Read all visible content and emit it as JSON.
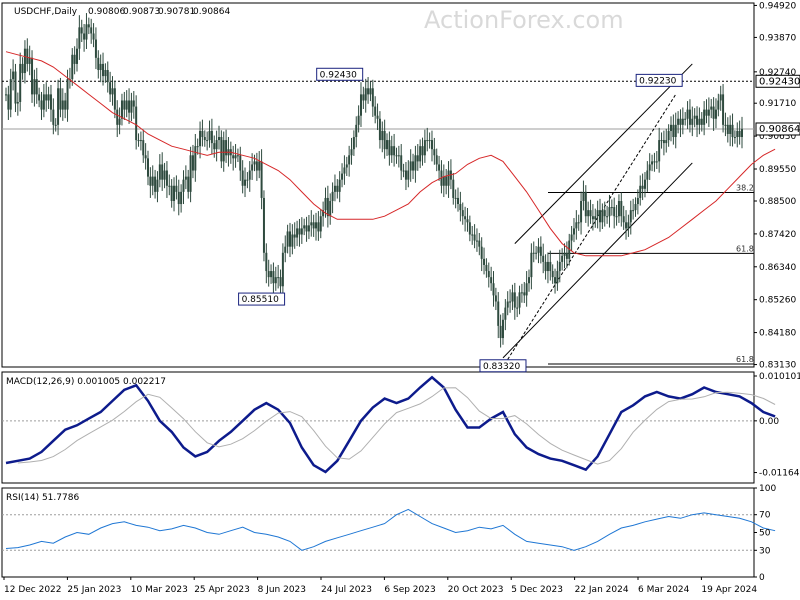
{
  "chart_data": {
    "type": "candlestick",
    "symbol": "USDCHF,Daily",
    "ohlc": [
      "0.90806",
      "0.90873",
      "0.90781",
      "0.90864"
    ],
    "watermark": "ActionForex.com",
    "x_labels": [
      "12 Dec 2022",
      "25 Jan 2023",
      "10 Mar 2023",
      "25 Apr 2023",
      "8 Jun 2023",
      "24 Jul 2023",
      "6 Sep 2023",
      "20 Oct 2023",
      "5 Dec 2023",
      "22 Jan 2024",
      "6 Mar 2024",
      "19 Apr 2024"
    ],
    "price": {
      "ylim": [
        0.8305,
        0.95
      ],
      "ticks": [
        "0.94920",
        "0.93870",
        "0.92740",
        "0.91710",
        "0.90630",
        "0.89550",
        "0.88500",
        "0.87420",
        "0.86340",
        "0.85260",
        "0.84180",
        "0.83130"
      ],
      "current": "0.90864",
      "resistance": "0.92430",
      "close": [
        0.92,
        0.915,
        0.925,
        0.9275,
        0.917,
        0.9175,
        0.93,
        0.927,
        0.935,
        0.93,
        0.932,
        0.92,
        0.925,
        0.92,
        0.918,
        0.915,
        0.92,
        0.918,
        0.92,
        0.915,
        0.91,
        0.91,
        0.922,
        0.915,
        0.918,
        0.915,
        0.925,
        0.925,
        0.933,
        0.93,
        0.935,
        0.942,
        0.94,
        0.938,
        0.943,
        0.942,
        0.94,
        0.938,
        0.932,
        0.928,
        0.93,
        0.926,
        0.928,
        0.924,
        0.92,
        0.922,
        0.915,
        0.91,
        0.912,
        0.918,
        0.915,
        0.918,
        0.914,
        0.918,
        0.916,
        0.905,
        0.905,
        0.905,
        0.9,
        0.899,
        0.893,
        0.89,
        0.893,
        0.888,
        0.892,
        0.897,
        0.892,
        0.895,
        0.89,
        0.89,
        0.885,
        0.89,
        0.888,
        0.884,
        0.888,
        0.892,
        0.893,
        0.888,
        0.9,
        0.895,
        0.903,
        0.903,
        0.908,
        0.906,
        0.905,
        0.905,
        0.908,
        0.904,
        0.902,
        0.905,
        0.906,
        0.898,
        0.905,
        0.9,
        0.902,
        0.9,
        0.899,
        0.9,
        0.9,
        0.895,
        0.89,
        0.892,
        0.892,
        0.895,
        0.897,
        0.898,
        0.895,
        0.898,
        0.886,
        0.868,
        0.862,
        0.86,
        0.862,
        0.858,
        0.86,
        0.86,
        0.857,
        0.868,
        0.87,
        0.875,
        0.87,
        0.874,
        0.873,
        0.876,
        0.874,
        0.876,
        0.877,
        0.875,
        0.877,
        0.878,
        0.876,
        0.878,
        0.875,
        0.88,
        0.882,
        0.886,
        0.88,
        0.885,
        0.888,
        0.89,
        0.888,
        0.892,
        0.894,
        0.896,
        0.897,
        0.9,
        0.902,
        0.906,
        0.91,
        0.913,
        0.92,
        0.918,
        0.922,
        0.92,
        0.922,
        0.916,
        0.913,
        0.912,
        0.905,
        0.908,
        0.902,
        0.905,
        0.9,
        0.903,
        0.9,
        0.9,
        0.9,
        0.895,
        0.895,
        0.892,
        0.895,
        0.898,
        0.895,
        0.9,
        0.898,
        0.903,
        0.9,
        0.905,
        0.905,
        0.905,
        0.902,
        0.9,
        0.897,
        0.895,
        0.89,
        0.893,
        0.89,
        0.895,
        0.892,
        0.886,
        0.886,
        0.884,
        0.882,
        0.88,
        0.879,
        0.878,
        0.874,
        0.874,
        0.872,
        0.872,
        0.87,
        0.866,
        0.864,
        0.862,
        0.86,
        0.858,
        0.854,
        0.852,
        0.844,
        0.84,
        0.846,
        0.85,
        0.852,
        0.852,
        0.855,
        0.85,
        0.85,
        0.855,
        0.855,
        0.854,
        0.858,
        0.86,
        0.868,
        0.868,
        0.868,
        0.87,
        0.867,
        0.865,
        0.862,
        0.865,
        0.862,
        0.86,
        0.858,
        0.862,
        0.865,
        0.867,
        0.868,
        0.866,
        0.872,
        0.874,
        0.876,
        0.878,
        0.878,
        0.885,
        0.888,
        0.88,
        0.882,
        0.88,
        0.879,
        0.88,
        0.882,
        0.878,
        0.882,
        0.88,
        0.88,
        0.883,
        0.883,
        0.88,
        0.88,
        0.885,
        0.88,
        0.878,
        0.876,
        0.878,
        0.882,
        0.882,
        0.884,
        0.886,
        0.89,
        0.889,
        0.892,
        0.895,
        0.897,
        0.898,
        0.898,
        0.898,
        0.905,
        0.905,
        0.904,
        0.905,
        0.908,
        0.91,
        0.906,
        0.91,
        0.912,
        0.91,
        0.912,
        0.912,
        0.915,
        0.91,
        0.912,
        0.913,
        0.91,
        0.912,
        0.91,
        0.915,
        0.913,
        0.915,
        0.916,
        0.912,
        0.915,
        0.918,
        0.92,
        0.91,
        0.91,
        0.907,
        0.91,
        0.906,
        0.906,
        0.908,
        0.906,
        0.9086
      ],
      "ma": [
        0.934,
        0.933,
        0.932,
        0.931,
        0.929,
        0.926,
        0.923,
        0.92,
        0.917,
        0.914,
        0.912,
        0.91,
        0.907,
        0.905,
        0.903,
        0.902,
        0.901,
        0.9,
        0.901,
        0.901,
        0.9,
        0.899,
        0.897,
        0.895,
        0.892,
        0.888,
        0.884,
        0.881,
        0.879,
        0.879,
        0.879,
        0.879,
        0.88,
        0.882,
        0.884,
        0.888,
        0.891,
        0.893,
        0.894,
        0.897,
        0.899,
        0.9,
        0.898,
        0.893,
        0.888,
        0.882,
        0.876,
        0.871,
        0.868,
        0.867,
        0.867,
        0.867,
        0.867,
        0.868,
        0.869,
        0.871,
        0.873,
        0.876,
        0.879,
        0.882,
        0.885,
        0.889,
        0.893,
        0.897,
        0.9,
        0.902
      ],
      "ma_x0": 0,
      "ma_step": 5,
      "annotations": [
        {
          "label": "0.92430",
          "i": 141,
          "v": 0.9243
        },
        {
          "label": "0.85510",
          "i": 108,
          "v": 0.8551
        },
        {
          "label": "0.83320",
          "i": 210,
          "v": 0.8332
        },
        {
          "label": "0.92230",
          "i": 276,
          "v": 0.9223
        }
      ],
      "fib": [
        {
          "label": "38.2",
          "v": 0.8878
        },
        {
          "label": "61.8",
          "v": 0.8678
        },
        {
          "label": "61.8",
          "v": 0.8315
        }
      ],
      "channel": [
        {
          "from": [
            210,
            0.8335
          ],
          "to": [
            290,
            0.8975
          ]
        },
        {
          "from": [
            215,
            0.871
          ],
          "to": [
            290,
            0.93
          ]
        }
      ]
    },
    "macd": {
      "title": "MACD(12,26,9) 0.001005 0.002217",
      "ylim": [
        -0.014,
        0.011
      ],
      "ticks": [
        "0.010101",
        "0.00",
        "-0.011645"
      ],
      "line": [
        -0.0095,
        -0.009,
        -0.0085,
        -0.007,
        -0.0045,
        -0.002,
        -0.001,
        0.0005,
        0.002,
        0.0045,
        0.007,
        0.008,
        0.0045,
        0.0,
        -0.0025,
        -0.006,
        -0.008,
        -0.007,
        -0.0045,
        -0.0025,
        0.0,
        0.0025,
        0.004,
        0.0025,
        -0.0005,
        -0.006,
        -0.01,
        -0.0115,
        -0.009,
        -0.0045,
        0.0,
        0.003,
        0.005,
        0.004,
        0.005,
        0.0075,
        0.0098,
        0.0075,
        0.0025,
        -0.0015,
        -0.0015,
        0.0005,
        0.002,
        -0.003,
        -0.006,
        -0.0075,
        -0.0085,
        -0.009,
        -0.01,
        -0.011,
        -0.008,
        -0.003,
        0.002,
        0.0035,
        0.0055,
        0.0065,
        0.0055,
        0.005,
        0.006,
        0.0075,
        0.0065,
        0.006,
        0.0055,
        0.004,
        0.002,
        0.001
      ],
      "x0": 0,
      "step": 5
    },
    "rsi": {
      "title": "RSI(14) 51.7786",
      "ylim": [
        0,
        100
      ],
      "ticks": [
        "100",
        "70",
        "50",
        "30",
        "0"
      ],
      "levels": [
        70,
        30
      ],
      "values": [
        32,
        33,
        36,
        40,
        38,
        45,
        50,
        48,
        55,
        60,
        62,
        58,
        56,
        52,
        54,
        58,
        55,
        50,
        48,
        52,
        56,
        50,
        48,
        45,
        40,
        30,
        34,
        40,
        44,
        48,
        52,
        56,
        60,
        70,
        76,
        68,
        60,
        55,
        50,
        52,
        56,
        54,
        58,
        48,
        40,
        38,
        36,
        34,
        30,
        34,
        40,
        48,
        55,
        58,
        62,
        65,
        68,
        66,
        70,
        72,
        70,
        68,
        66,
        62,
        55,
        52
      ],
      "x0": 0,
      "step": 5
    }
  }
}
